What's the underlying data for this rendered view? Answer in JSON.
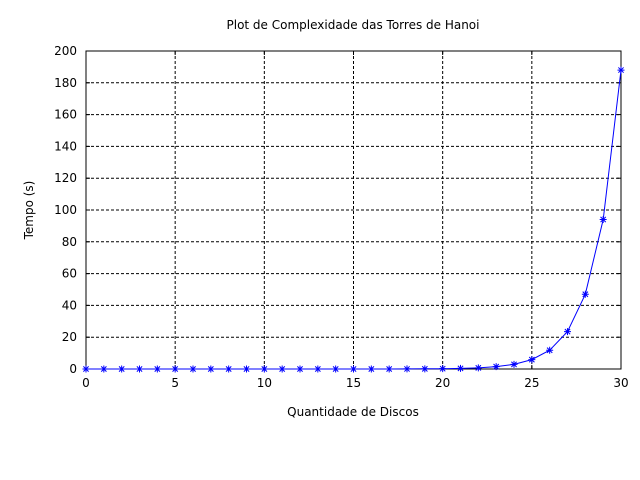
{
  "chart_data": {
    "type": "line",
    "title": "Plot de Complexidade das Torres de Hanoi",
    "xlabel": "Quantidade de Discos",
    "ylabel": "Tempo (s)",
    "xlim": [
      0,
      30
    ],
    "ylim": [
      0,
      200
    ],
    "x_ticks": [
      0,
      5,
      10,
      15,
      20,
      25,
      30
    ],
    "y_ticks": [
      0,
      20,
      40,
      60,
      80,
      100,
      120,
      140,
      160,
      180,
      200
    ],
    "grid": true,
    "grid_style": "dashed",
    "legend": "none",
    "marker": "asterisk",
    "line_color": "#0000ff",
    "series": [
      {
        "x": [
          0,
          1,
          2,
          3,
          4,
          5,
          6,
          7,
          8,
          9,
          10,
          11,
          12,
          13,
          14,
          15,
          16,
          17,
          18,
          19,
          20,
          21,
          22,
          23,
          24,
          25,
          26,
          27,
          28,
          29,
          30
        ],
        "values": [
          0,
          0,
          0,
          0,
          0,
          0,
          0,
          0,
          0,
          0,
          0,
          0,
          0,
          0,
          0,
          0,
          0,
          0.02,
          0.05,
          0.1,
          0.2,
          0.4,
          0.7,
          1.5,
          2.9,
          5.9,
          11.8,
          23.5,
          47,
          94,
          188
        ]
      }
    ]
  }
}
